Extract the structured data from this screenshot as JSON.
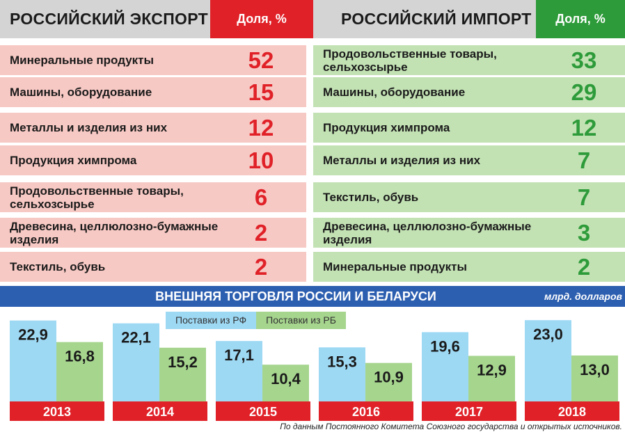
{
  "export": {
    "title": "РОССИЙСКИЙ ЭКСПОРТ",
    "share_label": "Доля, %",
    "rows": [
      {
        "label": "Минеральные продукты",
        "value": "52"
      },
      {
        "label": "Машины, оборудование",
        "value": "15"
      },
      {
        "label": "Металлы и изделия из них",
        "value": "12"
      },
      {
        "label": "Продукция химпрома",
        "value": "10"
      },
      {
        "label": "Продовольственные товары, сельхозсырье",
        "value": "6"
      },
      {
        "label": "Древесина, целлюлозно-бумажные изделия",
        "value": "2"
      },
      {
        "label": "Текстиль, обувь",
        "value": "2"
      }
    ]
  },
  "import": {
    "title": "РОССИЙСКИЙ ИМПОРТ",
    "share_label": "Доля, %",
    "rows": [
      {
        "label": "Продовольственные товары, сельхозсырье",
        "value": "33"
      },
      {
        "label": "Машины, оборудование",
        "value": "29"
      },
      {
        "label": "Продукция химпрома",
        "value": "12"
      },
      {
        "label": "Металлы и изделия из них",
        "value": "7"
      },
      {
        "label": "Текстиль, обувь",
        "value": "7"
      },
      {
        "label": "Древесина, целлюлозно-бумажные изделия",
        "value": "3"
      },
      {
        "label": "Минеральные продукты",
        "value": "2"
      }
    ]
  },
  "colors": {
    "export_accent": "#e02128",
    "import_accent": "#2e9b3a",
    "rf_bar": "#9ed9f4",
    "rb_bar": "#a6d58e",
    "title_bar": "#2d5fb0"
  },
  "chart_data": {
    "type": "bar",
    "title": "ВНЕШНЯЯ ТОРГОВЛЯ РОССИИ И БЕЛАРУСИ",
    "unit": "млрд. долларов",
    "categories": [
      "2013",
      "2014",
      "2015",
      "2016",
      "2017",
      "2018"
    ],
    "series": [
      {
        "name": "Поставки из РФ",
        "values": [
          22.9,
          22.1,
          17.1,
          15.3,
          19.6,
          23.0
        ],
        "labels": [
          "22,9",
          "22,1",
          "17,1",
          "15,3",
          "19,6",
          "23,0"
        ]
      },
      {
        "name": "Поставки из РБ",
        "values": [
          16.8,
          15.2,
          10.4,
          10.9,
          12.9,
          13.0
        ],
        "labels": [
          "16,8",
          "15,2",
          "10,4",
          "10,9",
          "12,9",
          "13,0"
        ]
      }
    ],
    "ylim": [
      0,
      25
    ],
    "legend": "top-center"
  },
  "source": "По данным Постоянного Комитета Союзного государства и открытых источников."
}
